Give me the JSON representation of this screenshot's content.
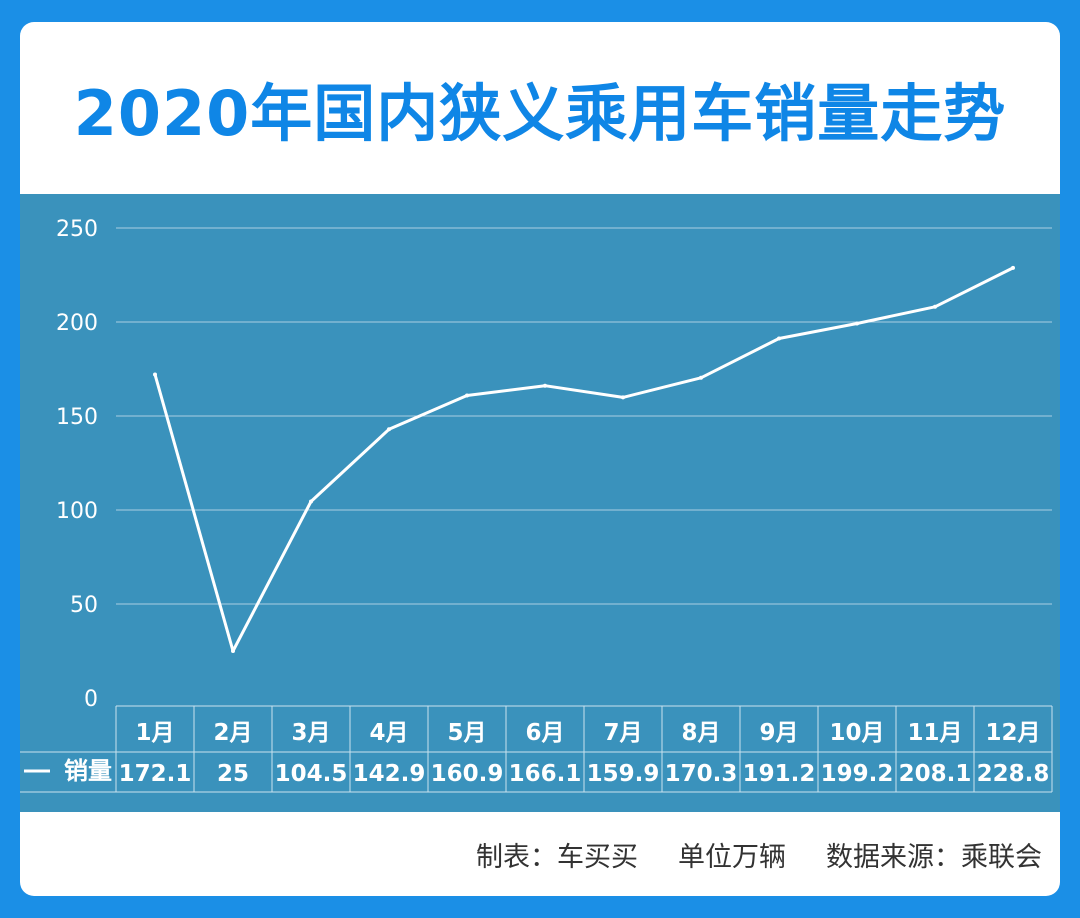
{
  "header": {
    "title": "2020年国内狭义乘用车销量走势"
  },
  "chart_data": {
    "type": "line",
    "title": "2020年国内狭义乘用车销量走势",
    "categories": [
      "1月",
      "2月",
      "3月",
      "4月",
      "5月",
      "6月",
      "7月",
      "8月",
      "9月",
      "10月",
      "11月",
      "12月"
    ],
    "series": [
      {
        "name": "销量",
        "values": [
          172.1,
          25,
          104.5,
          142.9,
          160.9,
          166.1,
          159.9,
          170.3,
          191.2,
          199.2,
          208.1,
          228.8
        ]
      }
    ],
    "value_labels": [
      "172.1",
      "25",
      "104.5",
      "142.9",
      "160.9",
      "166.1",
      "159.9",
      "170.3",
      "191.2",
      "199.2",
      "208.1",
      "228.8"
    ],
    "yticks": [
      "0",
      "50",
      "100",
      "150",
      "200",
      "250"
    ],
    "ylim": [
      0,
      250
    ],
    "grid": true,
    "legend": "data-table-left"
  },
  "footer": {
    "maker": "制表：车买买",
    "unit": "单位万辆",
    "source": "数据来源：乘联会"
  },
  "colors": {
    "frame": "#1b8fe6",
    "title": "#0f86e6",
    "plot_bg": "#3a92bc",
    "line": "#ffffff"
  }
}
